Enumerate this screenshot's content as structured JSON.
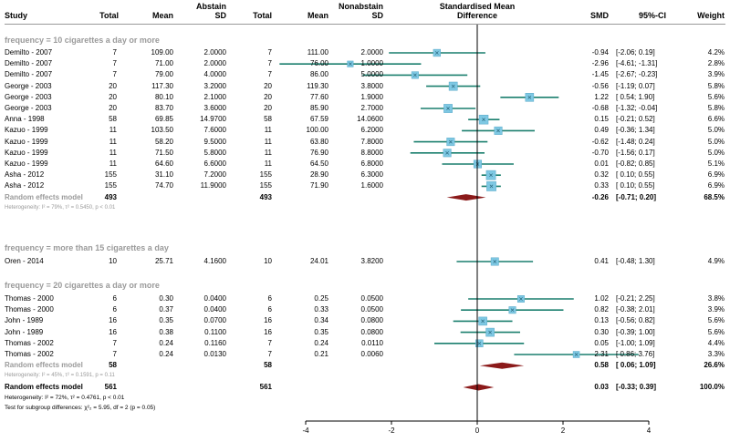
{
  "header": {
    "study": "Study",
    "abstain_group": "Abstain",
    "nonabstain_group": "Nonabstain",
    "total": "Total",
    "mean": "Mean",
    "sd": "SD",
    "plot_title_1": "Standardised Mean",
    "plot_title_2": "Difference",
    "smd": "SMD",
    "ci": "95%-CI",
    "weight": "Weight"
  },
  "subgroups": [
    {
      "label": "frequency = 10 cigarettes a day or more",
      "rows": [
        {
          "study": "Demilto - 2007",
          "a_total": "7",
          "a_mean": "109.00",
          "a_sd": "2.0000",
          "n_total": "7",
          "n_mean": "111.00",
          "n_sd": "2.0000",
          "smd": "-0.94",
          "ci": "[-2.06; 0.19]",
          "weight": "4.2%",
          "est": -0.94,
          "lo": -2.06,
          "hi": 0.19,
          "w": 4.2
        },
        {
          "study": "Demilto - 2007",
          "a_total": "7",
          "a_mean": "71.00",
          "a_sd": "2.0000",
          "n_total": "7",
          "n_mean": "76.00",
          "n_sd": "1.0000",
          "smd": "-2.96",
          "ci": "[-4.61; -1.31]",
          "weight": "2.8%",
          "est": -2.96,
          "lo": -4.61,
          "hi": -1.31,
          "w": 2.8
        },
        {
          "study": "Demilto - 2007",
          "a_total": "7",
          "a_mean": "79.00",
          "a_sd": "4.0000",
          "n_total": "7",
          "n_mean": "86.00",
          "n_sd": "5.0000",
          "smd": "-1.45",
          "ci": "[-2.67; -0.23]",
          "weight": "3.9%",
          "est": -1.45,
          "lo": -2.67,
          "hi": -0.23,
          "w": 3.9
        },
        {
          "study": "George - 2003",
          "a_total": "20",
          "a_mean": "117.30",
          "a_sd": "3.2000",
          "n_total": "20",
          "n_mean": "119.30",
          "n_sd": "3.8000",
          "smd": "-0.56",
          "ci": "[-1.19; 0.07]",
          "weight": "5.8%",
          "est": -0.56,
          "lo": -1.19,
          "hi": 0.07,
          "w": 5.8
        },
        {
          "study": "George - 2003",
          "a_total": "20",
          "a_mean": "80.10",
          "a_sd": "2.1000",
          "n_total": "20",
          "n_mean": "77.60",
          "n_sd": "1.9000",
          "smd": "1.22",
          "ci": "[ 0.54; 1.90]",
          "weight": "5.6%",
          "est": 1.22,
          "lo": 0.54,
          "hi": 1.9,
          "w": 5.6
        },
        {
          "study": "George - 2003",
          "a_total": "20",
          "a_mean": "83.70",
          "a_sd": "3.6000",
          "n_total": "20",
          "n_mean": "85.90",
          "n_sd": "2.7000",
          "smd": "-0.68",
          "ci": "[-1.32; -0.04]",
          "weight": "5.8%",
          "est": -0.68,
          "lo": -1.32,
          "hi": -0.04,
          "w": 5.8
        },
        {
          "study": "Anna - 1998",
          "a_total": "58",
          "a_mean": "69.85",
          "a_sd": "14.9700",
          "n_total": "58",
          "n_mean": "67.59",
          "n_sd": "14.0600",
          "smd": "0.15",
          "ci": "[-0.21; 0.52]",
          "weight": "6.6%",
          "est": 0.15,
          "lo": -0.21,
          "hi": 0.52,
          "w": 6.6
        },
        {
          "study": "Kazuo - 1999",
          "a_total": "11",
          "a_mean": "103.50",
          "a_sd": "7.6000",
          "n_total": "11",
          "n_mean": "100.00",
          "n_sd": "6.2000",
          "smd": "0.49",
          "ci": "[-0.36; 1.34]",
          "weight": "5.0%",
          "est": 0.49,
          "lo": -0.36,
          "hi": 1.34,
          "w": 5.0
        },
        {
          "study": "Kazuo - 1999",
          "a_total": "11",
          "a_mean": "58.20",
          "a_sd": "9.5000",
          "n_total": "11",
          "n_mean": "63.80",
          "n_sd": "7.8000",
          "smd": "-0.62",
          "ci": "[-1.48; 0.24]",
          "weight": "5.0%",
          "est": -0.62,
          "lo": -1.48,
          "hi": 0.24,
          "w": 5.0
        },
        {
          "study": "Kazuo - 1999",
          "a_total": "11",
          "a_mean": "71.50",
          "a_sd": "5.8000",
          "n_total": "11",
          "n_mean": "76.90",
          "n_sd": "8.8000",
          "smd": "-0.70",
          "ci": "[-1.56; 0.17]",
          "weight": "5.0%",
          "est": -0.7,
          "lo": -1.56,
          "hi": 0.17,
          "w": 5.0
        },
        {
          "study": "Kazuo - 1999",
          "a_total": "11",
          "a_mean": "64.60",
          "a_sd": "6.6000",
          "n_total": "11",
          "n_mean": "64.50",
          "n_sd": "6.8000",
          "smd": "0.01",
          "ci": "[-0.82; 0.85]",
          "weight": "5.1%",
          "est": 0.01,
          "lo": -0.82,
          "hi": 0.85,
          "w": 5.1
        },
        {
          "study": "Asha - 2012",
          "a_total": "155",
          "a_mean": "31.10",
          "a_sd": "7.2000",
          "n_total": "155",
          "n_mean": "28.90",
          "n_sd": "6.3000",
          "smd": "0.32",
          "ci": "[ 0.10; 0.55]",
          "weight": "6.9%",
          "est": 0.32,
          "lo": 0.1,
          "hi": 0.55,
          "w": 6.9
        },
        {
          "study": "Asha - 2012",
          "a_total": "155",
          "a_mean": "74.70",
          "a_sd": "11.9000",
          "n_total": "155",
          "n_mean": "71.90",
          "n_sd": "1.6000",
          "smd": "0.33",
          "ci": "[ 0.10; 0.55]",
          "weight": "6.9%",
          "est": 0.33,
          "lo": 0.1,
          "hi": 0.55,
          "w": 6.9
        }
      ],
      "re": {
        "label": "Random effects model",
        "a_total": "493",
        "n_total": "493",
        "smd": "-0.26",
        "ci": "[-0.71; 0.20]",
        "weight": "68.5%",
        "est": -0.26,
        "lo": -0.71,
        "hi": 0.2
      },
      "het": "Heterogeneity: I² = 79%, τ² = 0.5450, p < 0.01"
    },
    {
      "label": "frequency = more than 15 cigarettes a day",
      "rows": [
        {
          "study": "Oren - 2014",
          "a_total": "10",
          "a_mean": "25.71",
          "a_sd": "4.1600",
          "n_total": "10",
          "n_mean": "24.01",
          "n_sd": "3.8200",
          "smd": "0.41",
          "ci": "[-0.48; 1.30]",
          "weight": "4.9%",
          "est": 0.41,
          "lo": -0.48,
          "hi": 1.3,
          "w": 4.9
        }
      ]
    },
    {
      "label": "frequency = 20 cigarettes a day or more",
      "rows": [
        {
          "study": "Thomas - 2000",
          "a_total": "6",
          "a_mean": "0.30",
          "a_sd": "0.0400",
          "n_total": "6",
          "n_mean": "0.25",
          "n_sd": "0.0500",
          "smd": "1.02",
          "ci": "[-0.21; 2.25]",
          "weight": "3.8%",
          "est": 1.02,
          "lo": -0.21,
          "hi": 2.25,
          "w": 3.8
        },
        {
          "study": "Thomas - 2000",
          "a_total": "6",
          "a_mean": "0.37",
          "a_sd": "0.0400",
          "n_total": "6",
          "n_mean": "0.33",
          "n_sd": "0.0500",
          "smd": "0.82",
          "ci": "[-0.38; 2.01]",
          "weight": "3.9%",
          "est": 0.82,
          "lo": -0.38,
          "hi": 2.01,
          "w": 3.9
        },
        {
          "study": "John - 1989",
          "a_total": "16",
          "a_mean": "0.35",
          "a_sd": "0.0700",
          "n_total": "16",
          "n_mean": "0.34",
          "n_sd": "0.0800",
          "smd": "0.13",
          "ci": "[-0.56; 0.82]",
          "weight": "5.6%",
          "est": 0.13,
          "lo": -0.56,
          "hi": 0.82,
          "w": 5.6
        },
        {
          "study": "John - 1989",
          "a_total": "16",
          "a_mean": "0.38",
          "a_sd": "0.1100",
          "n_total": "16",
          "n_mean": "0.35",
          "n_sd": "0.0800",
          "smd": "0.30",
          "ci": "[-0.39; 1.00]",
          "weight": "5.6%",
          "est": 0.3,
          "lo": -0.39,
          "hi": 1.0,
          "w": 5.6
        },
        {
          "study": "Thomas - 2002",
          "a_total": "7",
          "a_mean": "0.24",
          "a_sd": "0.1160",
          "n_total": "7",
          "n_mean": "0.24",
          "n_sd": "0.0110",
          "smd": "0.05",
          "ci": "[-1.00; 1.09]",
          "weight": "4.4%",
          "est": 0.05,
          "lo": -1.0,
          "hi": 1.09,
          "w": 4.4
        },
        {
          "study": "Thomas - 2002",
          "a_total": "7",
          "a_mean": "0.24",
          "a_sd": "0.0130",
          "n_total": "7",
          "n_mean": "0.21",
          "n_sd": "0.0060",
          "smd": "2.31",
          "ci": "[ 0.86; 3.76]",
          "weight": "3.3%",
          "est": 2.31,
          "lo": 0.86,
          "hi": 3.76,
          "w": 3.3
        }
      ],
      "re": {
        "label": "Random effects model",
        "a_total": "58",
        "n_total": "58",
        "smd": "0.58",
        "ci": "[ 0.06; 1.09]",
        "weight": "26.6%",
        "est": 0.58,
        "lo": 0.06,
        "hi": 1.09
      },
      "het": "Heterogeneity: I² = 45%, τ² = 0.1591, p = 0.11"
    }
  ],
  "overall": {
    "label": "Random effects model",
    "a_total": "561",
    "n_total": "561",
    "smd": "0.03",
    "ci": "[-0.33; 0.39]",
    "weight": "100.0%",
    "est": 0.03,
    "lo": -0.33,
    "hi": 0.39
  },
  "overall_het": "Heterogeneity: I² = 72%, τ² = 0.4761, p < 0.01",
  "subgroup_test": "Test for subgroup differences: χ²₂ = 5.95, df = 2 (p = 0.05)",
  "axis": {
    "ticks": [
      "-4",
      "-2",
      "0",
      "2",
      "4"
    ]
  },
  "colors": {
    "square": "#7ec8e3",
    "ci_line": "#1a7f6e",
    "diamond": "#8b1a1a",
    "muted": "#9a9a9a"
  },
  "chart_data": {
    "type": "scatter",
    "title": "Standardised Mean Difference",
    "xlabel": "",
    "ylabel": "",
    "xlim": [
      -4,
      4
    ],
    "x_ticks": [
      -4,
      -2,
      0,
      2,
      4
    ],
    "reference_line": 0,
    "series": [
      {
        "name": "frequency = 10 cigarettes a day or more",
        "estimates": [
          -0.94,
          -2.96,
          -1.45,
          -0.56,
          1.22,
          -0.68,
          0.15,
          0.49,
          -0.62,
          -0.7,
          0.01,
          0.32,
          0.33
        ],
        "pooled": -0.26
      },
      {
        "name": "frequency = more than 15 cigarettes a day",
        "estimates": [
          0.41
        ]
      },
      {
        "name": "frequency = 20 cigarettes a day or more",
        "estimates": [
          1.02,
          0.82,
          0.13,
          0.3,
          0.05,
          2.31
        ],
        "pooled": 0.58
      },
      {
        "name": "Random effects model",
        "pooled": 0.03
      }
    ]
  }
}
